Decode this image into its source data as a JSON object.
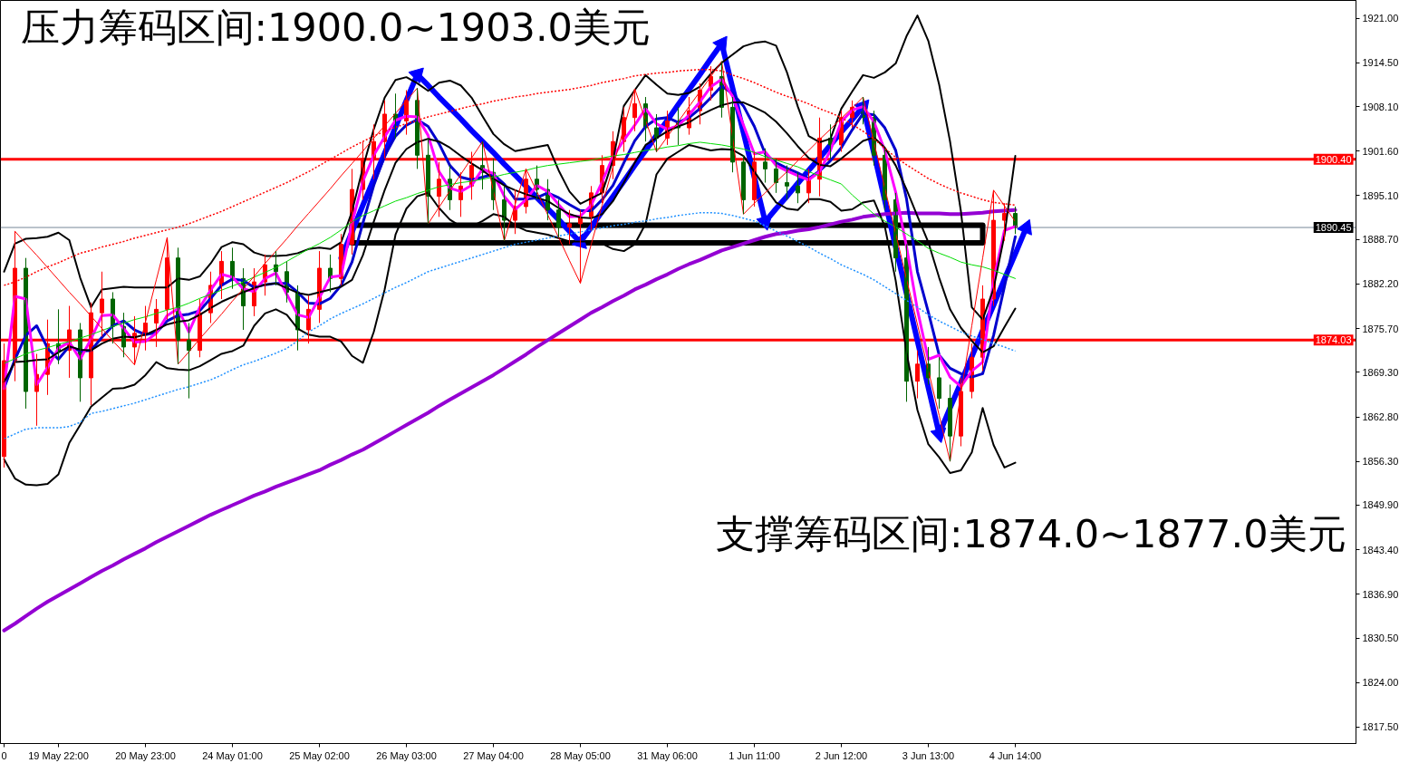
{
  "chart_data": {
    "type": "candlestick",
    "annotations": [
      "压力筹码区间:1900.0~1903.0美元",
      "支撑筹码区间:1874.0~1877.0美元"
    ],
    "categories": [
      "0",
      null,
      null,
      null,
      null,
      "19 May 22:00",
      null,
      null,
      null,
      null,
      null,
      null,
      null,
      "20 May 23:00",
      null,
      null,
      null,
      null,
      null,
      null,
      null,
      "24 May 01:00",
      null,
      null,
      null,
      null,
      null,
      null,
      null,
      "25 May 02:00",
      null,
      null,
      null,
      null,
      null,
      null,
      null,
      "26 May 03:00",
      null,
      null,
      null,
      null,
      null,
      null,
      null,
      "27 May 04:00",
      null,
      null,
      null,
      null,
      null,
      null,
      null,
      "28 May 05:00",
      null,
      null,
      null,
      null,
      null,
      null,
      null,
      "31 May 06:00",
      null,
      null,
      null,
      null,
      null,
      null,
      null,
      "1 Jun 11:00",
      null,
      null,
      null,
      null,
      null,
      null,
      null,
      "2 Jun 12:00",
      null,
      null,
      null,
      null,
      null,
      null,
      null,
      "3 Jun 13:00",
      null,
      null,
      null,
      null,
      null,
      null,
      null,
      "4 Jun 14:00",
      null
    ],
    "ylim": [
      1815.1,
      1923.6
    ],
    "yticks": [
      {
        "value": 1921.0,
        "label": "1921.00"
      },
      {
        "value": 1914.5,
        "label": "1914.50"
      },
      {
        "value": 1908.1,
        "label": "1908.10"
      },
      {
        "value": 1901.6,
        "label": "1901.60"
      },
      {
        "value": 1895.1,
        "label": "1895.10"
      },
      {
        "value": 1888.7,
        "label": "1888.70"
      },
      {
        "value": 1882.2,
        "label": "1882.20"
      },
      {
        "value": 1875.7,
        "label": "1875.70"
      },
      {
        "value": 1869.3,
        "label": "1869.30"
      },
      {
        "value": 1862.8,
        "label": "1862.80"
      },
      {
        "value": 1856.3,
        "label": "1856.30"
      },
      {
        "value": 1849.9,
        "label": "1849.90"
      },
      {
        "value": 1843.4,
        "label": "1843.40"
      },
      {
        "value": 1836.9,
        "label": "1836.90"
      },
      {
        "value": 1830.5,
        "label": "1830.50"
      },
      {
        "value": 1824.0,
        "label": "1824.00"
      },
      {
        "value": 1817.5,
        "label": "1817.50"
      }
    ],
    "ref_lines": [
      {
        "axis": "y",
        "value": 1900.4,
        "label": "1900.40",
        "color": "#ff0000"
      },
      {
        "axis": "y",
        "value": 1890.45,
        "label": "1890.45",
        "color": "#778899"
      },
      {
        "axis": "y",
        "value": 1874.03,
        "label": "1874.03",
        "color": "#ff0000"
      }
    ],
    "ohlc": [
      [
        1857.0,
        1873.5,
        1855.4,
        1871.0
      ],
      [
        1871.0,
        1889.9,
        1868.0,
        1884.5
      ],
      [
        1884.5,
        1886.0,
        1864.0,
        1866.5
      ],
      [
        1866.5,
        1872.0,
        1861.5,
        1869.0
      ],
      [
        1869.0,
        1877.0,
        1866.0,
        1873.5
      ],
      [
        1873.5,
        1878.5,
        1870.5,
        1872.5
      ],
      [
        1872.5,
        1879.0,
        1868.5,
        1875.5
      ],
      [
        1875.5,
        1876.5,
        1865.0,
        1868.5
      ],
      [
        1868.5,
        1879.5,
        1864.5,
        1878.0
      ],
      [
        1878.0,
        1884.0,
        1874.5,
        1880.0
      ],
      [
        1880.0,
        1881.0,
        1873.5,
        1876.0
      ],
      [
        1876.0,
        1878.0,
        1871.5,
        1873.0
      ],
      [
        1873.0,
        1877.5,
        1870.4,
        1875.0
      ],
      [
        1875.0,
        1879.0,
        1872.5,
        1876.5
      ],
      [
        1876.5,
        1880.0,
        1873.0,
        1878.5
      ],
      [
        1878.5,
        1889.0,
        1877.0,
        1886.0
      ],
      [
        1886.0,
        1887.5,
        1870.5,
        1874.0
      ],
      [
        1874.0,
        1876.5,
        1865.5,
        1872.5
      ],
      [
        1872.5,
        1880.0,
        1871.5,
        1878.0
      ],
      [
        1878.0,
        1884.0,
        1876.5,
        1882.0
      ],
      [
        1882.0,
        1887.0,
        1880.0,
        1885.5
      ],
      [
        1885.5,
        1887.5,
        1881.5,
        1883.0
      ],
      [
        1883.0,
        1884.5,
        1875.5,
        1879.0
      ],
      [
        1879.0,
        1884.5,
        1877.5,
        1882.5
      ],
      [
        1882.5,
        1886.5,
        1880.5,
        1885.0
      ],
      [
        1885.0,
        1887.0,
        1882.0,
        1884.0
      ],
      [
        1884.0,
        1885.5,
        1879.5,
        1881.0
      ],
      [
        1881.0,
        1882.0,
        1872.5,
        1875.5
      ],
      [
        1875.5,
        1880.5,
        1873.5,
        1878.5
      ],
      [
        1878.5,
        1887.0,
        1876.5,
        1884.5
      ],
      [
        1884.5,
        1886.5,
        1881.0,
        1883.0
      ],
      [
        1883.0,
        1889.5,
        1882.0,
        1888.0
      ],
      [
        1888.0,
        1899.0,
        1886.5,
        1896.0
      ],
      [
        1896.0,
        1903.0,
        1894.5,
        1900.5
      ],
      [
        1900.5,
        1905.5,
        1897.5,
        1903.0
      ],
      [
        1903.0,
        1909.0,
        1900.5,
        1907.0
      ],
      [
        1907.0,
        1910.0,
        1903.5,
        1906.0
      ],
      [
        1906.0,
        1910.5,
        1904.0,
        1909.0
      ],
      [
        1909.0,
        1910.8,
        1899.0,
        1901.0
      ],
      [
        1901.0,
        1903.5,
        1891.0,
        1895.0
      ],
      [
        1895.0,
        1900.0,
        1892.0,
        1897.5
      ],
      [
        1897.5,
        1899.5,
        1893.0,
        1894.5
      ],
      [
        1894.5,
        1898.5,
        1892.0,
        1896.5
      ],
      [
        1896.5,
        1901.5,
        1894.5,
        1899.5
      ],
      [
        1899.5,
        1903.0,
        1896.0,
        1898.5
      ],
      [
        1898.5,
        1900.5,
        1893.0,
        1894.5
      ],
      [
        1894.5,
        1896.5,
        1888.5,
        1891.5
      ],
      [
        1891.5,
        1896.0,
        1889.5,
        1893.5
      ],
      [
        1893.5,
        1899.0,
        1892.5,
        1897.5
      ],
      [
        1897.5,
        1899.5,
        1894.5,
        1896.0
      ],
      [
        1896.0,
        1897.5,
        1891.5,
        1893.0
      ],
      [
        1893.0,
        1894.5,
        1889.0,
        1890.5
      ],
      [
        1890.5,
        1893.0,
        1888.0,
        1891.0
      ],
      [
        1891.0,
        1893.0,
        1882.3,
        1892.0
      ],
      [
        1892.0,
        1896.5,
        1890.0,
        1895.5
      ],
      [
        1895.5,
        1901.0,
        1894.0,
        1899.5
      ],
      [
        1899.5,
        1904.5,
        1897.5,
        1903.0
      ],
      [
        1903.0,
        1908.0,
        1901.5,
        1906.5
      ],
      [
        1906.5,
        1910.7,
        1904.5,
        1908.5
      ],
      [
        1908.5,
        1909.5,
        1903.0,
        1905.0
      ],
      [
        1905.0,
        1907.0,
        1901.5,
        1903.5
      ],
      [
        1903.5,
        1907.5,
        1902.5,
        1906.0
      ],
      [
        1906.0,
        1908.0,
        1902.5,
        1905.0
      ],
      [
        1905.0,
        1909.5,
        1904.0,
        1907.5
      ],
      [
        1907.5,
        1911.5,
        1905.5,
        1910.5
      ],
      [
        1910.5,
        1914.0,
        1909.0,
        1912.5
      ],
      [
        1912.5,
        1914.7,
        1906.5,
        1908.0
      ],
      [
        1908.0,
        1909.5,
        1898.5,
        1900.0
      ],
      [
        1900.0,
        1901.0,
        1892.4,
        1894.5
      ],
      [
        1894.5,
        1901.5,
        1893.5,
        1900.0
      ],
      [
        1900.0,
        1902.0,
        1897.0,
        1899.0
      ],
      [
        1899.0,
        1900.5,
        1895.5,
        1897.0
      ],
      [
        1897.0,
        1899.5,
        1894.5,
        1896.5
      ],
      [
        1896.5,
        1898.5,
        1894.0,
        1895.5
      ],
      [
        1895.5,
        1899.0,
        1894.0,
        1897.5
      ],
      [
        1897.5,
        1906.5,
        1895.0,
        1903.5
      ],
      [
        1903.5,
        1905.5,
        1900.5,
        1902.5
      ],
      [
        1902.5,
        1907.5,
        1901.5,
        1906.5
      ],
      [
        1906.5,
        1909.0,
        1905.0,
        1908.0
      ],
      [
        1908.0,
        1909.5,
        1905.5,
        1906.5
      ],
      [
        1906.5,
        1907.5,
        1899.5,
        1901.0
      ],
      [
        1901.0,
        1902.0,
        1893.0,
        1894.5
      ],
      [
        1894.5,
        1895.5,
        1884.0,
        1886.0
      ],
      [
        1886.0,
        1888.0,
        1865.0,
        1868.0
      ],
      [
        1868.0,
        1872.5,
        1865.5,
        1870.5
      ],
      [
        1870.5,
        1873.0,
        1867.5,
        1868.5
      ],
      [
        1868.5,
        1871.5,
        1864.0,
        1865.5
      ],
      [
        1865.5,
        1867.5,
        1856.3,
        1860.0
      ],
      [
        1860.0,
        1868.5,
        1858.5,
        1866.5
      ],
      [
        1866.5,
        1873.5,
        1865.5,
        1871.5
      ],
      [
        1871.5,
        1882.0,
        1869.5,
        1880.0
      ],
      [
        1880.0,
        1895.9,
        1879.0,
        1891.5
      ],
      [
        1891.5,
        1894.0,
        1888.5,
        1892.5
      ],
      [
        1892.5,
        1893.5,
        1889.5,
        1890.45
      ],
      null
    ],
    "colors": [
      "#ff0000",
      "#ff0000",
      "#006400",
      "#ff0000",
      "#ff0000",
      "#006400",
      "#ff0000",
      "#006400",
      "#ff0000",
      "#ff0000",
      "#006400",
      "#006400",
      "#ff0000",
      "#ff0000",
      "#ff0000",
      "#ff0000",
      "#006400",
      "#006400",
      "#ff0000",
      "#ff0000",
      "#ff0000",
      "#006400",
      "#006400",
      "#ff0000",
      "#ff0000",
      "#006400",
      "#006400",
      "#006400",
      "#ff0000",
      "#ff0000",
      "#006400",
      "#ff0000",
      "#ff0000",
      "#ff0000",
      "#ff0000",
      "#ff0000",
      "#006400",
      "#ff0000",
      "#006400",
      "#006400",
      "#ff0000",
      "#006400",
      "#ff0000",
      "#ff0000",
      "#006400",
      "#006400",
      "#006400",
      "#ff0000",
      "#ff0000",
      "#006400",
      "#006400",
      "#006400",
      "#ff0000",
      "#ff0000",
      "#ff0000",
      "#ff0000",
      "#ff0000",
      "#ff0000",
      "#ff0000",
      "#006400",
      "#006400",
      "#ff0000",
      "#006400",
      "#ff0000",
      "#ff0000",
      "#ff0000",
      "#006400",
      "#006400",
      "#006400",
      "#ff0000",
      "#006400",
      "#006400",
      "#006400",
      "#006400",
      "#ff0000",
      "#ff0000",
      "#006400",
      "#ff0000",
      "#ff0000",
      "#006400",
      "#006400",
      "#006400",
      "#006400",
      "#006400",
      "#ff0000",
      "#006400",
      "#006400",
      "#006400",
      "#ff0000",
      "#ff0000",
      "#ff0000",
      "#ff0000",
      "#ff0000",
      "#006400",
      null
    ],
    "series": [
      {
        "type": "line",
        "color": "#9400d3",
        "values": [
          1831.6,
          1832.6,
          1833.7,
          1834.8,
          1835.8,
          1836.7,
          1837.6,
          1838.5,
          1839.4,
          1840.3,
          1841.1,
          1842.0,
          1842.8,
          1843.6,
          1844.5,
          1845.3,
          1846.1,
          1846.9,
          1847.7,
          1848.5,
          1849.2,
          1849.9,
          1850.6,
          1851.3,
          1851.9,
          1852.6,
          1853.2,
          1853.8,
          1854.4,
          1855.0,
          1855.8,
          1856.5,
          1857.3,
          1858.0,
          1858.9,
          1859.8,
          1860.7,
          1861.6,
          1862.5,
          1863.4,
          1864.4,
          1865.3,
          1866.2,
          1867.1,
          1868.0,
          1868.9,
          1869.9,
          1870.9,
          1871.9,
          1873.0,
          1874.0,
          1875.0,
          1876.0,
          1877.0,
          1878.0,
          1878.8,
          1879.7,
          1880.5,
          1881.4,
          1882.1,
          1882.9,
          1883.6,
          1884.4,
          1885.1,
          1885.7,
          1886.4,
          1887.1,
          1887.6,
          1888.1,
          1888.6,
          1889.1,
          1889.5,
          1889.7,
          1890.0,
          1890.2,
          1890.5,
          1890.9,
          1891.3,
          1891.6,
          1892.0,
          1892.2,
          1892.4,
          1892.5,
          1892.6,
          1892.5,
          1892.5,
          1892.5,
          1892.4,
          1892.4,
          1892.5,
          1892.6,
          1892.8,
          1892.9,
          1893.0,
          null
        ]
      },
      {
        "type": "line",
        "color": "#00dd00",
        "values": [
          1870.6,
          1871.3,
          1872.0,
          1872.5,
          1872.9,
          1873.4,
          1873.8,
          1874.3,
          1874.8,
          1875.4,
          1876.0,
          1876.5,
          1877.0,
          1877.4,
          1877.9,
          1878.4,
          1878.8,
          1879.4,
          1880.1,
          1880.7,
          1881.3,
          1881.9,
          1882.5,
          1883.2,
          1883.9,
          1884.6,
          1885.5,
          1886.4,
          1887.3,
          1888.1,
          1889.0,
          1890.1,
          1891.3,
          1892.2,
          1892.9,
          1893.6,
          1894.3,
          1894.8,
          1895.4,
          1895.9,
          1896.4,
          1896.7,
          1897.0,
          1897.2,
          1897.5,
          1897.8,
          1898.2,
          1898.5,
          1898.8,
          1899.2,
          1899.5,
          1899.7,
          1899.9,
          1900.1,
          1900.3,
          1900.6,
          1900.9,
          1901.1,
          1901.4,
          1901.7,
          1901.9,
          1902.2,
          1902.4,
          1902.7,
          1902.9,
          1902.7,
          1902.5,
          1902.2,
          1901.9,
          1901.4,
          1900.8,
          1900.3,
          1899.8,
          1899.3,
          1898.6,
          1898.0,
          1897.4,
          1896.8,
          1895.2,
          1893.8,
          1892.4,
          1891.4,
          1890.5,
          1889.5,
          1888.5,
          1887.4,
          1886.7,
          1886.1,
          1885.4,
          1885.0,
          1884.7,
          1884.2,
          1883.6,
          1883.0,
          null
        ]
      },
      {
        "type": "line",
        "color": "#ff0000",
        "line_style": "dotted",
        "values": [
          1882.0,
          1882.5,
          1883.2,
          1884.0,
          1884.7,
          1885.3,
          1886.0,
          1886.7,
          1887.1,
          1887.6,
          1888.0,
          1888.4,
          1888.9,
          1889.3,
          1889.7,
          1890.1,
          1890.5,
          1891.0,
          1891.6,
          1892.2,
          1892.8,
          1893.5,
          1894.2,
          1894.9,
          1895.6,
          1896.3,
          1897.0,
          1897.8,
          1898.6,
          1899.5,
          1900.4,
          1901.3,
          1902.2,
          1903.0,
          1903.8,
          1904.5,
          1905.1,
          1905.6,
          1906.1,
          1906.6,
          1907.0,
          1907.4,
          1907.8,
          1908.2,
          1908.5,
          1908.9,
          1909.2,
          1909.5,
          1909.7,
          1910.0,
          1910.2,
          1910.4,
          1910.6,
          1910.9,
          1911.2,
          1911.6,
          1911.9,
          1912.2,
          1912.6,
          1912.8,
          1913.0,
          1913.1,
          1913.3,
          1913.4,
          1913.5,
          1913.5,
          1913.3,
          1912.7,
          1912.2,
          1911.6,
          1910.9,
          1910.2,
          1909.6,
          1909.1,
          1908.5,
          1907.8,
          1907.2,
          1906.5,
          1905.5,
          1904.5,
          1903.4,
          1902.0,
          1900.7,
          1899.6,
          1898.6,
          1897.6,
          1896.8,
          1896.1,
          1895.5,
          1895.0,
          1894.5,
          1894.1,
          1893.9,
          1893.7,
          null
        ]
      },
      {
        "type": "line",
        "color": "#1e90ff",
        "line_style": "dotted",
        "values": [
          1859.6,
          1860.3,
          1861.0,
          1861.2,
          1861.2,
          1861.2,
          1861.4,
          1862.0,
          1863.3,
          1863.6,
          1864.0,
          1864.4,
          1864.8,
          1865.3,
          1865.8,
          1866.3,
          1866.8,
          1867.2,
          1867.7,
          1868.2,
          1868.9,
          1869.7,
          1870.4,
          1870.9,
          1871.5,
          1872.1,
          1872.8,
          1873.9,
          1875.2,
          1876.1,
          1877.1,
          1877.9,
          1878.6,
          1879.3,
          1880.1,
          1880.9,
          1881.7,
          1882.4,
          1883.2,
          1884.0,
          1884.5,
          1885.0,
          1885.5,
          1886.0,
          1886.5,
          1887.0,
          1887.5,
          1888.0,
          1888.3,
          1888.6,
          1888.9,
          1889.2,
          1889.5,
          1889.8,
          1890.1,
          1890.4,
          1890.7,
          1890.9,
          1891.2,
          1891.4,
          1891.7,
          1891.9,
          1892.2,
          1892.4,
          1892.6,
          1892.6,
          1892.5,
          1892.2,
          1891.8,
          1891.4,
          1890.7,
          1889.9,
          1889.2,
          1888.4,
          1887.6,
          1886.7,
          1885.9,
          1885.0,
          1884.3,
          1883.6,
          1882.8,
          1881.8,
          1880.8,
          1879.8,
          1878.8,
          1877.7,
          1876.8,
          1876.0,
          1875.2,
          1874.6,
          1874.1,
          1873.5,
          1873.0,
          1872.4,
          null
        ]
      },
      {
        "type": "line",
        "color": "#000000",
        "values": [
          1884.0,
          1888.1,
          1888.8,
          1888.9,
          1889.1,
          1889.7,
          1888.6,
          1883.1,
          1878.8,
          1881.4,
          1881.6,
          1881.8,
          1881.7,
          1881.7,
          1881.7,
          1881.7,
          1883.0,
          1882.8,
          1883.3,
          1885.2,
          1887.6,
          1888.3,
          1888.0,
          1886.8,
          1886.3,
          1886.3,
          1886.4,
          1886.7,
          1887.3,
          1887.5,
          1887.3,
          1888.3,
          1892.8,
          1899.2,
          1904.8,
          1909.4,
          1912.0,
          1912.4,
          1911.5,
          1910.4,
          1911.6,
          1911.9,
          1911.2,
          1909.4,
          1906.7,
          1904.1,
          1902.6,
          1901.6,
          1901.9,
          1902.2,
          1902.5,
          1898.8,
          1895.7,
          1893.9,
          1894.7,
          1895.5,
          1900.3,
          1908.2,
          1910.5,
          1912.7,
          1911.3,
          1910.0,
          1909.8,
          1910.1,
          1911.0,
          1912.9,
          1914.5,
          1915.7,
          1916.9,
          1917.4,
          1917.6,
          1917.0,
          1913.1,
          1908.1,
          1903.8,
          1902.9,
          1903.4,
          1907.8,
          1910.3,
          1912.7,
          1912.3,
          1913.1,
          1914.4,
          1918.4,
          1921.4,
          1917.7,
          1911.3,
          1903.0,
          1892.8,
          1878.8,
          1877.0,
          1881.5,
          1889.3,
          1900.9,
          null
        ]
      },
      {
        "type": "line",
        "color": "#000000",
        "values": [
          1867.9,
          1870.8,
          1870.9,
          1871.1,
          1871.2,
          1872.2,
          1873.1,
          1872.6,
          1872.5,
          1873.5,
          1874.2,
          1874.5,
          1874.4,
          1874.8,
          1875.5,
          1876.3,
          1876.7,
          1876.9,
          1877.7,
          1878.7,
          1879.6,
          1880.3,
          1881.0,
          1881.6,
          1882.1,
          1882.3,
          1881.6,
          1880.9,
          1880.6,
          1881.0,
          1881.4,
          1881.8,
          1882.8,
          1886.4,
          1891.3,
          1895.9,
          1899.9,
          1901.9,
          1902.9,
          1903.4,
          1903.0,
          1902.1,
          1900.9,
          1899.8,
          1898.8,
          1897.6,
          1896.6,
          1895.9,
          1895.3,
          1894.8,
          1894.3,
          1893.3,
          1892.4,
          1891.9,
          1891.8,
          1892.4,
          1894.3,
          1897.0,
          1899.9,
          1902.5,
          1903.5,
          1904.5,
          1905.2,
          1905.8,
          1906.8,
          1907.6,
          1908.3,
          1908.7,
          1908.7,
          1908.0,
          1907.2,
          1905.9,
          1904.2,
          1902.3,
          1900.6,
          1899.6,
          1899.4,
          1900.5,
          1901.8,
          1903.1,
          1903.6,
          1902.1,
          1899.5,
          1896.0,
          1892.1,
          1888.3,
          1883.1,
          1878.5,
          1875.8,
          1873.9,
          1872.2,
          1873.1,
          1875.9,
          1878.6,
          null
        ]
      },
      {
        "type": "line",
        "color": "#000000",
        "values": [
          1856.6,
          1853.8,
          1852.9,
          1852.8,
          1853.0,
          1854.4,
          1859.0,
          1861.6,
          1864.3,
          1865.6,
          1866.9,
          1867.0,
          1867.5,
          1868.9,
          1870.8,
          1869.9,
          1869.7,
          1869.6,
          1870.2,
          1871.1,
          1872.0,
          1872.4,
          1873.2,
          1876.1,
          1877.9,
          1878.5,
          1877.7,
          1875.7,
          1874.8,
          1874.5,
          1874.5,
          1873.8,
          1871.7,
          1870.7,
          1875.2,
          1881.4,
          1889.4,
          1893.2,
          1895.0,
          1895.5,
          1893.3,
          1891.6,
          1890.6,
          1890.6,
          1891.4,
          1892.4,
          1892.0,
          1890.7,
          1890.0,
          1889.7,
          1889.4,
          1888.9,
          1888.4,
          1888.4,
          1888.4,
          1888.1,
          1887.3,
          1887.0,
          1888.0,
          1891.0,
          1898.2,
          1900.5,
          1901.5,
          1902.5,
          1902.1,
          1901.7,
          1901.9,
          1901.8,
          1900.9,
          1898.6,
          1896.3,
          1894.1,
          1893.2,
          1893.0,
          1894.6,
          1894.6,
          1894.2,
          1892.9,
          1893.1,
          1894.1,
          1894.4,
          1890.6,
          1882.7,
          1872.2,
          1863.8,
          1858.8,
          1856.9,
          1854.6,
          1855.0,
          1857.6,
          1864.1,
          1858.7,
          1855.4,
          1856.1,
          null
        ]
      },
      {
        "type": "line",
        "color": "#0000cd",
        "values": [
          1867.0,
          1871.2,
          1874.7,
          1876.1,
          1872.8,
          1871.2,
          1873.1,
          1872.4,
          1872.5,
          1874.4,
          1876.1,
          1876.8,
          1875.5,
          1874.8,
          1875.1,
          1876.8,
          1877.6,
          1877.8,
          1878.3,
          1880.1,
          1882.0,
          1882.9,
          1882.7,
          1881.7,
          1882.1,
          1882.3,
          1882.3,
          1881.0,
          1879.4,
          1879.3,
          1880.1,
          1882.0,
          1885.4,
          1891.1,
          1896.6,
          1900.9,
          1903.8,
          1905.4,
          1906.2,
          1905.2,
          1902.7,
          1899.5,
          1897.8,
          1897.4,
          1897.8,
          1898.2,
          1896.8,
          1894.6,
          1894.6,
          1894.8,
          1895.5,
          1894.8,
          1893.8,
          1892.9,
          1892.9,
          1894.5,
          1896.6,
          1899.9,
          1903.1,
          1905.2,
          1906.3,
          1906.5,
          1905.8,
          1906.5,
          1907.8,
          1909.4,
          1911.1,
          1910.0,
          1908.2,
          1905.2,
          1901.2,
          1899.9,
          1899.1,
          1898.4,
          1897.6,
          1898.7,
          1900.2,
          1902.1,
          1904.7,
          1907.1,
          1906.9,
          1905.0,
          1901.7,
          1894.6,
          1884.0,
          1878.1,
          1871.8,
          1869.9,
          1869.1,
          1868.6,
          1869.1,
          1874.7,
          1881.8,
          1889.1,
          null
        ]
      },
      {
        "type": "line",
        "color": "#ff00ff",
        "values": [
          1866.9,
          1880.4,
          1880.0,
          1867.5,
          1870.0,
          1872.8,
          1873.7,
          1871.2,
          1874.2,
          1877.6,
          1877.7,
          1875.7,
          1873.7,
          1873.8,
          1875.0,
          1877.6,
          1878.6,
          1875.2,
          1878.8,
          1881.3,
          1883.6,
          1883.2,
          1881.5,
          1881.1,
          1883.0,
          1883.8,
          1880.7,
          1877.7,
          1877.3,
          1880.2,
          1883.2,
          1883.4,
          1891.1,
          1897.2,
          1901.0,
          1903.7,
          1906.1,
          1906.7,
          1906.6,
          1903.9,
          1898.6,
          1896.2,
          1895.7,
          1896.6,
          1899.0,
          1898.3,
          1895.0,
          1893.1,
          1894.5,
          1896.6,
          1895.7,
          1893.8,
          1892.0,
          1892.1,
          1893.7,
          1897.1,
          1900.8,
          1903.2,
          1905.4,
          1907.8,
          1905.6,
          1904.8,
          1905.3,
          1906.9,
          1908.8,
          1911.0,
          1912.1,
          1909.6,
          1905.4,
          1901.2,
          1901.5,
          1899.5,
          1898.7,
          1898.0,
          1897.4,
          1898.6,
          1901.7,
          1905.9,
          1907.6,
          1908.1,
          1905.9,
          1901.7,
          1895.6,
          1887.6,
          1878.4,
          1871.2,
          1871.8,
          1868.6,
          1867.2,
          1869.5,
          1870.8,
          1882.7,
          1890.0,
          1890.6,
          null
        ]
      },
      {
        "type": "line",
        "color": "#ff0000",
        "values": [
          null,
          1889.9,
          1888.1,
          1886.4,
          1884.6,
          1882.8,
          1881.0,
          1879.3,
          1877.5,
          1875.7,
          1873.9,
          1872.2,
          1870.4,
          1876.6,
          1882.8,
          1889.0,
          1870.5,
          1872.3,
          1874.2,
          1876.0,
          1877.8,
          1879.7,
          1881.5,
          1883.3,
          1885.2,
          1887.0,
          1888.8,
          1890.7,
          1892.5,
          1894.3,
          1896.1,
          1898.0,
          1899.8,
          1901.6,
          1903.5,
          1905.3,
          1907.1,
          1909.0,
          1910.8,
          1891.0,
          1893.4,
          1895.8,
          1898.2,
          1900.6,
          1903.0,
          1895.8,
          1888.5,
          1893.8,
          1899.0,
          1895.7,
          1892.3,
          1889.0,
          1885.6,
          1882.3,
          1888.0,
          1893.7,
          1899.3,
          1905.0,
          1910.7,
          1906.1,
          1901.5,
          1903.7,
          1905.9,
          1908.1,
          1910.3,
          1912.5,
          1914.7,
          1903.6,
          1892.4,
          1894.0,
          1895.5,
          1897.1,
          1898.6,
          1900.2,
          1901.7,
          1903.3,
          1904.8,
          1906.4,
          1907.9,
          1909.5,
          1902.9,
          1896.2,
          1889.6,
          1882.9,
          1876.3,
          1869.6,
          1863.0,
          1856.3,
          1866.2,
          1876.1,
          1886.0,
          1895.9,
          1893.6,
          1891.3,
          null
        ]
      },
      {
        "type": "line",
        "color": "#000000",
        "values": [
          null,
          null,
          null,
          null,
          null,
          null,
          null,
          null,
          null,
          null,
          null,
          null,
          null,
          null,
          null,
          null,
          null,
          null,
          null,
          null,
          null,
          null,
          null,
          null,
          null,
          null,
          null,
          null,
          null,
          null,
          null,
          null,
          1890.8,
          1890.8,
          1890.8,
          1890.8,
          1890.8,
          1890.8,
          1890.8,
          1890.8,
          1890.8,
          1890.8,
          1890.8,
          1890.8,
          1890.8,
          1890.8,
          1890.8,
          1890.8,
          1890.8,
          1890.8,
          1890.8,
          1890.8,
          1890.8,
          1890.8,
          1890.8,
          1890.8,
          1890.8,
          1890.8,
          1890.8,
          1890.8,
          1890.8,
          1890.8,
          1890.8,
          1890.8,
          1890.8,
          1890.8,
          1890.8,
          1890.8,
          1890.8,
          1890.8,
          1890.8,
          1890.8,
          1890.8,
          1890.8,
          1890.8,
          1890.8,
          1890.8,
          1890.8,
          1890.8,
          1890.8,
          1890.8,
          1890.8,
          1890.8,
          1890.8,
          1890.8,
          1890.8,
          1890.8,
          1890.8,
          1890.8,
          1890.8,
          1890.8,
          null,
          null,
          null,
          null
        ],
        "errors": [
          null,
          null,
          null,
          null,
          null,
          null,
          null,
          null,
          null,
          null,
          null,
          null,
          null,
          null,
          null,
          null,
          null,
          null,
          null,
          null,
          null,
          null,
          null,
          null,
          null,
          null,
          null,
          null,
          null,
          null,
          null,
          null,
          [
            1888.2,
            1890.8
          ],
          null,
          null,
          null,
          null,
          null,
          null,
          null,
          null,
          null,
          null,
          null,
          null,
          null,
          null,
          null,
          null,
          null,
          null,
          null,
          null,
          null,
          null,
          null,
          null,
          null,
          null,
          null,
          null,
          null,
          null,
          null,
          null,
          null,
          null,
          null,
          null,
          null,
          null,
          null,
          null,
          null,
          null,
          null,
          null,
          null,
          null,
          null,
          null,
          null,
          null,
          null,
          null,
          null,
          null,
          null,
          null,
          null,
          [
            1888.2,
            1890.8
          ],
          null,
          null,
          null,
          null
        ]
      },
      {
        "type": "line",
        "color": "#000000",
        "values": [
          null,
          null,
          null,
          null,
          null,
          null,
          null,
          null,
          null,
          null,
          null,
          null,
          null,
          null,
          null,
          null,
          null,
          null,
          null,
          null,
          null,
          null,
          null,
          null,
          null,
          null,
          null,
          null,
          null,
          null,
          null,
          null,
          1888.2,
          1888.2,
          1888.2,
          1888.2,
          1888.2,
          1888.2,
          1888.2,
          1888.2,
          1888.2,
          1888.2,
          1888.2,
          1888.2,
          1888.2,
          1888.2,
          1888.2,
          1888.2,
          1888.2,
          1888.2,
          1888.2,
          1888.2,
          1888.2,
          1888.2,
          1888.2,
          1888.2,
          1888.2,
          1888.2,
          1888.2,
          1888.2,
          1888.2,
          1888.2,
          1888.2,
          1888.2,
          1888.2,
          1888.2,
          1888.2,
          1888.2,
          1888.2,
          1888.2,
          1888.2,
          1888.2,
          1888.2,
          1888.2,
          1888.2,
          1888.2,
          1888.2,
          1888.2,
          1888.2,
          1888.2,
          1888.2,
          1888.2,
          1888.2,
          1888.2,
          1888.2,
          1888.2,
          1888.2,
          1888.2,
          1888.2,
          1888.2,
          1888.2,
          null,
          null,
          null,
          null
        ]
      },
      {
        "type": "line",
        "color": "#0000ff",
        "values": [
          null,
          null,
          null,
          null,
          null,
          null,
          null,
          null,
          null,
          null,
          null,
          null,
          null,
          null,
          null,
          null,
          null,
          null,
          null,
          null,
          null,
          null,
          null,
          null,
          null,
          null,
          null,
          null,
          null,
          null,
          null,
          1886.0,
          1889.8,
          1893.7,
          1897.5,
          1901.3,
          1905.1,
          1909.0,
          1912.8,
          1911.2,
          1909.5,
          1907.9,
          1906.3,
          1904.6,
          1903.0,
          1901.4,
          1899.7,
          1898.1,
          1896.5,
          1894.8,
          1893.2,
          1891.6,
          1889.9,
          1888.3,
          1890.5,
          1892.8,
          1895.0,
          1897.2,
          1899.5,
          1901.7,
          1903.9,
          1906.1,
          1908.4,
          1910.6,
          1912.8,
          1915.1,
          1917.3,
          1910.8,
          1904.3,
          1897.8,
          1891.3,
          1893.2,
          1895.0,
          1896.9,
          1898.8,
          1900.6,
          1902.5,
          1904.4,
          1906.2,
          1908.1,
          1901.3,
          1894.4,
          1887.6,
          1880.8,
          1873.9,
          1867.1,
          1860.3,
          1864.1,
          1867.8,
          1871.6,
          1875.4,
          1879.1,
          1882.9,
          1886.6,
          1890.4
        ]
      },
      {
        "type": "scatter",
        "color": "#0000ff",
        "marker": "triangle",
        "values": [
          null,
          null,
          null,
          null,
          null,
          null,
          null,
          null,
          null,
          null,
          null,
          null,
          null,
          null,
          null,
          null,
          null,
          null,
          null,
          null,
          null,
          null,
          null,
          null,
          null,
          null,
          null,
          null,
          null,
          null,
          null,
          null,
          null,
          null,
          null,
          null,
          null,
          null,
          1912.8,
          null,
          null,
          null,
          null,
          null,
          null,
          null,
          null,
          null,
          null,
          null,
          null,
          null,
          null,
          1888.3,
          null,
          null,
          null,
          null,
          null,
          null,
          null,
          null,
          null,
          null,
          null,
          null,
          1917.3,
          null,
          null,
          null,
          1891.3,
          null,
          null,
          null,
          null,
          null,
          null,
          null,
          null,
          1908.1,
          null,
          null,
          null,
          null,
          null,
          null,
          1860.3,
          null,
          null,
          null,
          null,
          null,
          null,
          null,
          1890.4
        ]
      }
    ]
  }
}
